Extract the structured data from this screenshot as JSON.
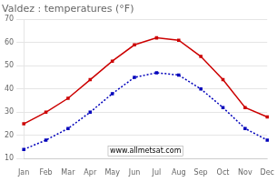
{
  "chart_data": {
    "type": "line",
    "title": "Valdez : temperatures (°F)",
    "categories": [
      "Jan",
      "Feb",
      "Mar",
      "Apr",
      "May",
      "Jun",
      "Jul",
      "Aug",
      "Sep",
      "Oct",
      "Nov",
      "Dec"
    ],
    "series": [
      {
        "color": "#cc0000",
        "line_style": "solid",
        "marker": "square",
        "values": [
          25,
          30,
          36,
          44,
          52,
          59,
          62,
          61,
          54,
          44,
          32,
          28
        ]
      },
      {
        "color": "#0000bb",
        "line_style": "dotted",
        "marker": "square",
        "values": [
          14,
          18,
          23,
          30,
          38,
          45,
          47,
          46,
          40,
          32,
          23,
          18
        ]
      }
    ],
    "ylim": [
      10,
      70
    ],
    "yticks": [
      10,
      20,
      30,
      40,
      50,
      60,
      70
    ],
    "grid": true,
    "annotations": [
      "www.allmetsat.com"
    ]
  }
}
